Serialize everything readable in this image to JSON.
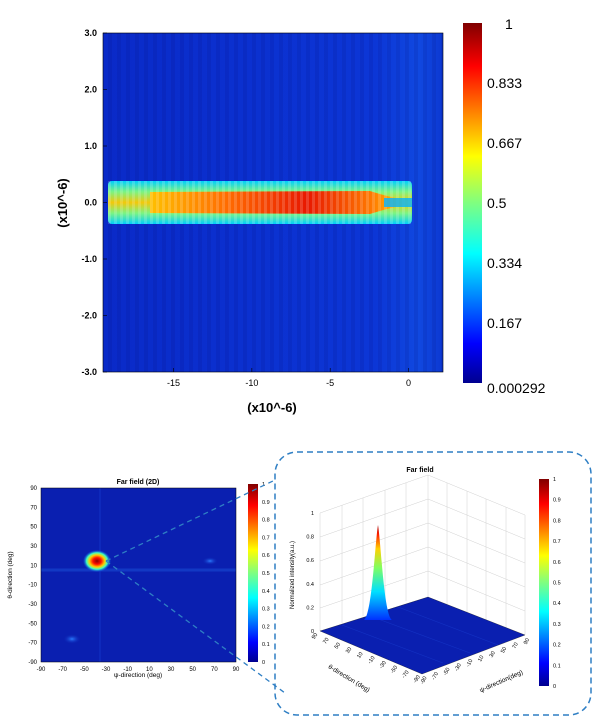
{
  "chart_data": [
    {
      "id": "near-field",
      "type": "heatmap",
      "title": "",
      "xlabel": "(x10^-6)",
      "ylabel": "(x10^-6)",
      "x_ticks": [
        "-15",
        "-10",
        "-5",
        "0"
      ],
      "x_tick_values": [
        -15,
        -10,
        -5,
        0
      ],
      "y_ticks": [
        "3.0",
        "2.0",
        "1.0",
        "0.0",
        "-1.0",
        "-2.0",
        "-3.0"
      ],
      "y_tick_values": [
        3,
        2,
        1,
        0,
        -1,
        -2,
        -3
      ],
      "xlim": [
        -19.5,
        2.2
      ],
      "ylim": [
        -3.0,
        3.0
      ],
      "colorbar_ticks": [
        "1",
        "0.833",
        "0.667",
        "0.5",
        "0.334",
        "0.167",
        "0.000292"
      ],
      "colorbar_values": [
        1,
        0.833,
        0.667,
        0.5,
        0.334,
        0.167,
        0.000292
      ],
      "colormap": "jet",
      "features": [
        {
          "name": "guided beam",
          "x_range": [
            -19.5,
            0.2
          ],
          "y_center": 0.0,
          "y_halfwidth": 0.32,
          "intensity_range": [
            0.55,
            0.95
          ],
          "peak_x": -7.5
        }
      ]
    },
    {
      "id": "far-field-2d",
      "type": "heatmap",
      "title": "Far field (2D)",
      "xlabel": "ψ-direction (deg)",
      "ylabel": "θ-direction (deg)",
      "x_ticks": [
        "-90",
        "-70",
        "-50",
        "-30",
        "-10",
        "10",
        "30",
        "50",
        "70",
        "90"
      ],
      "y_ticks": [
        "90",
        "70",
        "50",
        "30",
        "10",
        "-10",
        "-30",
        "-50",
        "-70",
        "-90"
      ],
      "xlim": [
        -90,
        90
      ],
      "ylim": [
        -90,
        90
      ],
      "colorbar_ticks": [
        "1",
        "0.9",
        "0.8",
        "0.7",
        "0.6",
        "0.5",
        "0.4",
        "0.3",
        "0.2",
        "0.1",
        "0"
      ],
      "peak": {
        "x": -40,
        "y": 14,
        "value": 1.0
      }
    },
    {
      "id": "far-field-3d",
      "type": "surface",
      "title": "Far field",
      "xlabel": "ψ-direction(deg)",
      "ylabel": "θ-direction (deg)",
      "zlabel": "Normalized intensity(a.u.)",
      "z_ticks": [
        "1",
        "0.8",
        "0.6",
        "0.4",
        "0.2",
        "0"
      ],
      "z_tick_values": [
        1,
        0.8,
        0.6,
        0.4,
        0.2,
        0
      ],
      "psi_ticks": [
        "-90",
        "-70",
        "-50",
        "-30",
        "-10",
        "10",
        "30",
        "50",
        "70",
        "90"
      ],
      "theta_ticks": [
        "90",
        "70",
        "50",
        "30",
        "10",
        "-10",
        "-30",
        "-50",
        "-70",
        "-90"
      ],
      "colorbar_ticks": [
        "1",
        "0.9",
        "0.8",
        "0.7",
        "0.6",
        "0.5",
        "0.4",
        "0.3",
        "0.2",
        "0.1",
        "0"
      ],
      "peak": {
        "psi": -40,
        "theta": 14,
        "value": 1.0
      }
    }
  ],
  "labels": {
    "nf_xlabel": "(x10^-6)",
    "nf_ylabel": "(x10^-6)",
    "ff2d_title": "Far field (2D)",
    "ff2d_xlabel": "ψ-direction (deg)",
    "ff2d_ylabel": "θ-direction (deg)",
    "ff3d_title": "Far field",
    "ff3d_zlabel": "Normalized intensity(a.u.)",
    "ff3d_theta_label": "θ-direction (deg)",
    "ff3d_psi_label": "ψ-direction(deg)"
  },
  "colors": {
    "jet_dark_blue": "#00008f",
    "jet_field_blue": "#0a2fd0",
    "jet_red": "#d10000",
    "callout_border": "#2f7fc4"
  }
}
